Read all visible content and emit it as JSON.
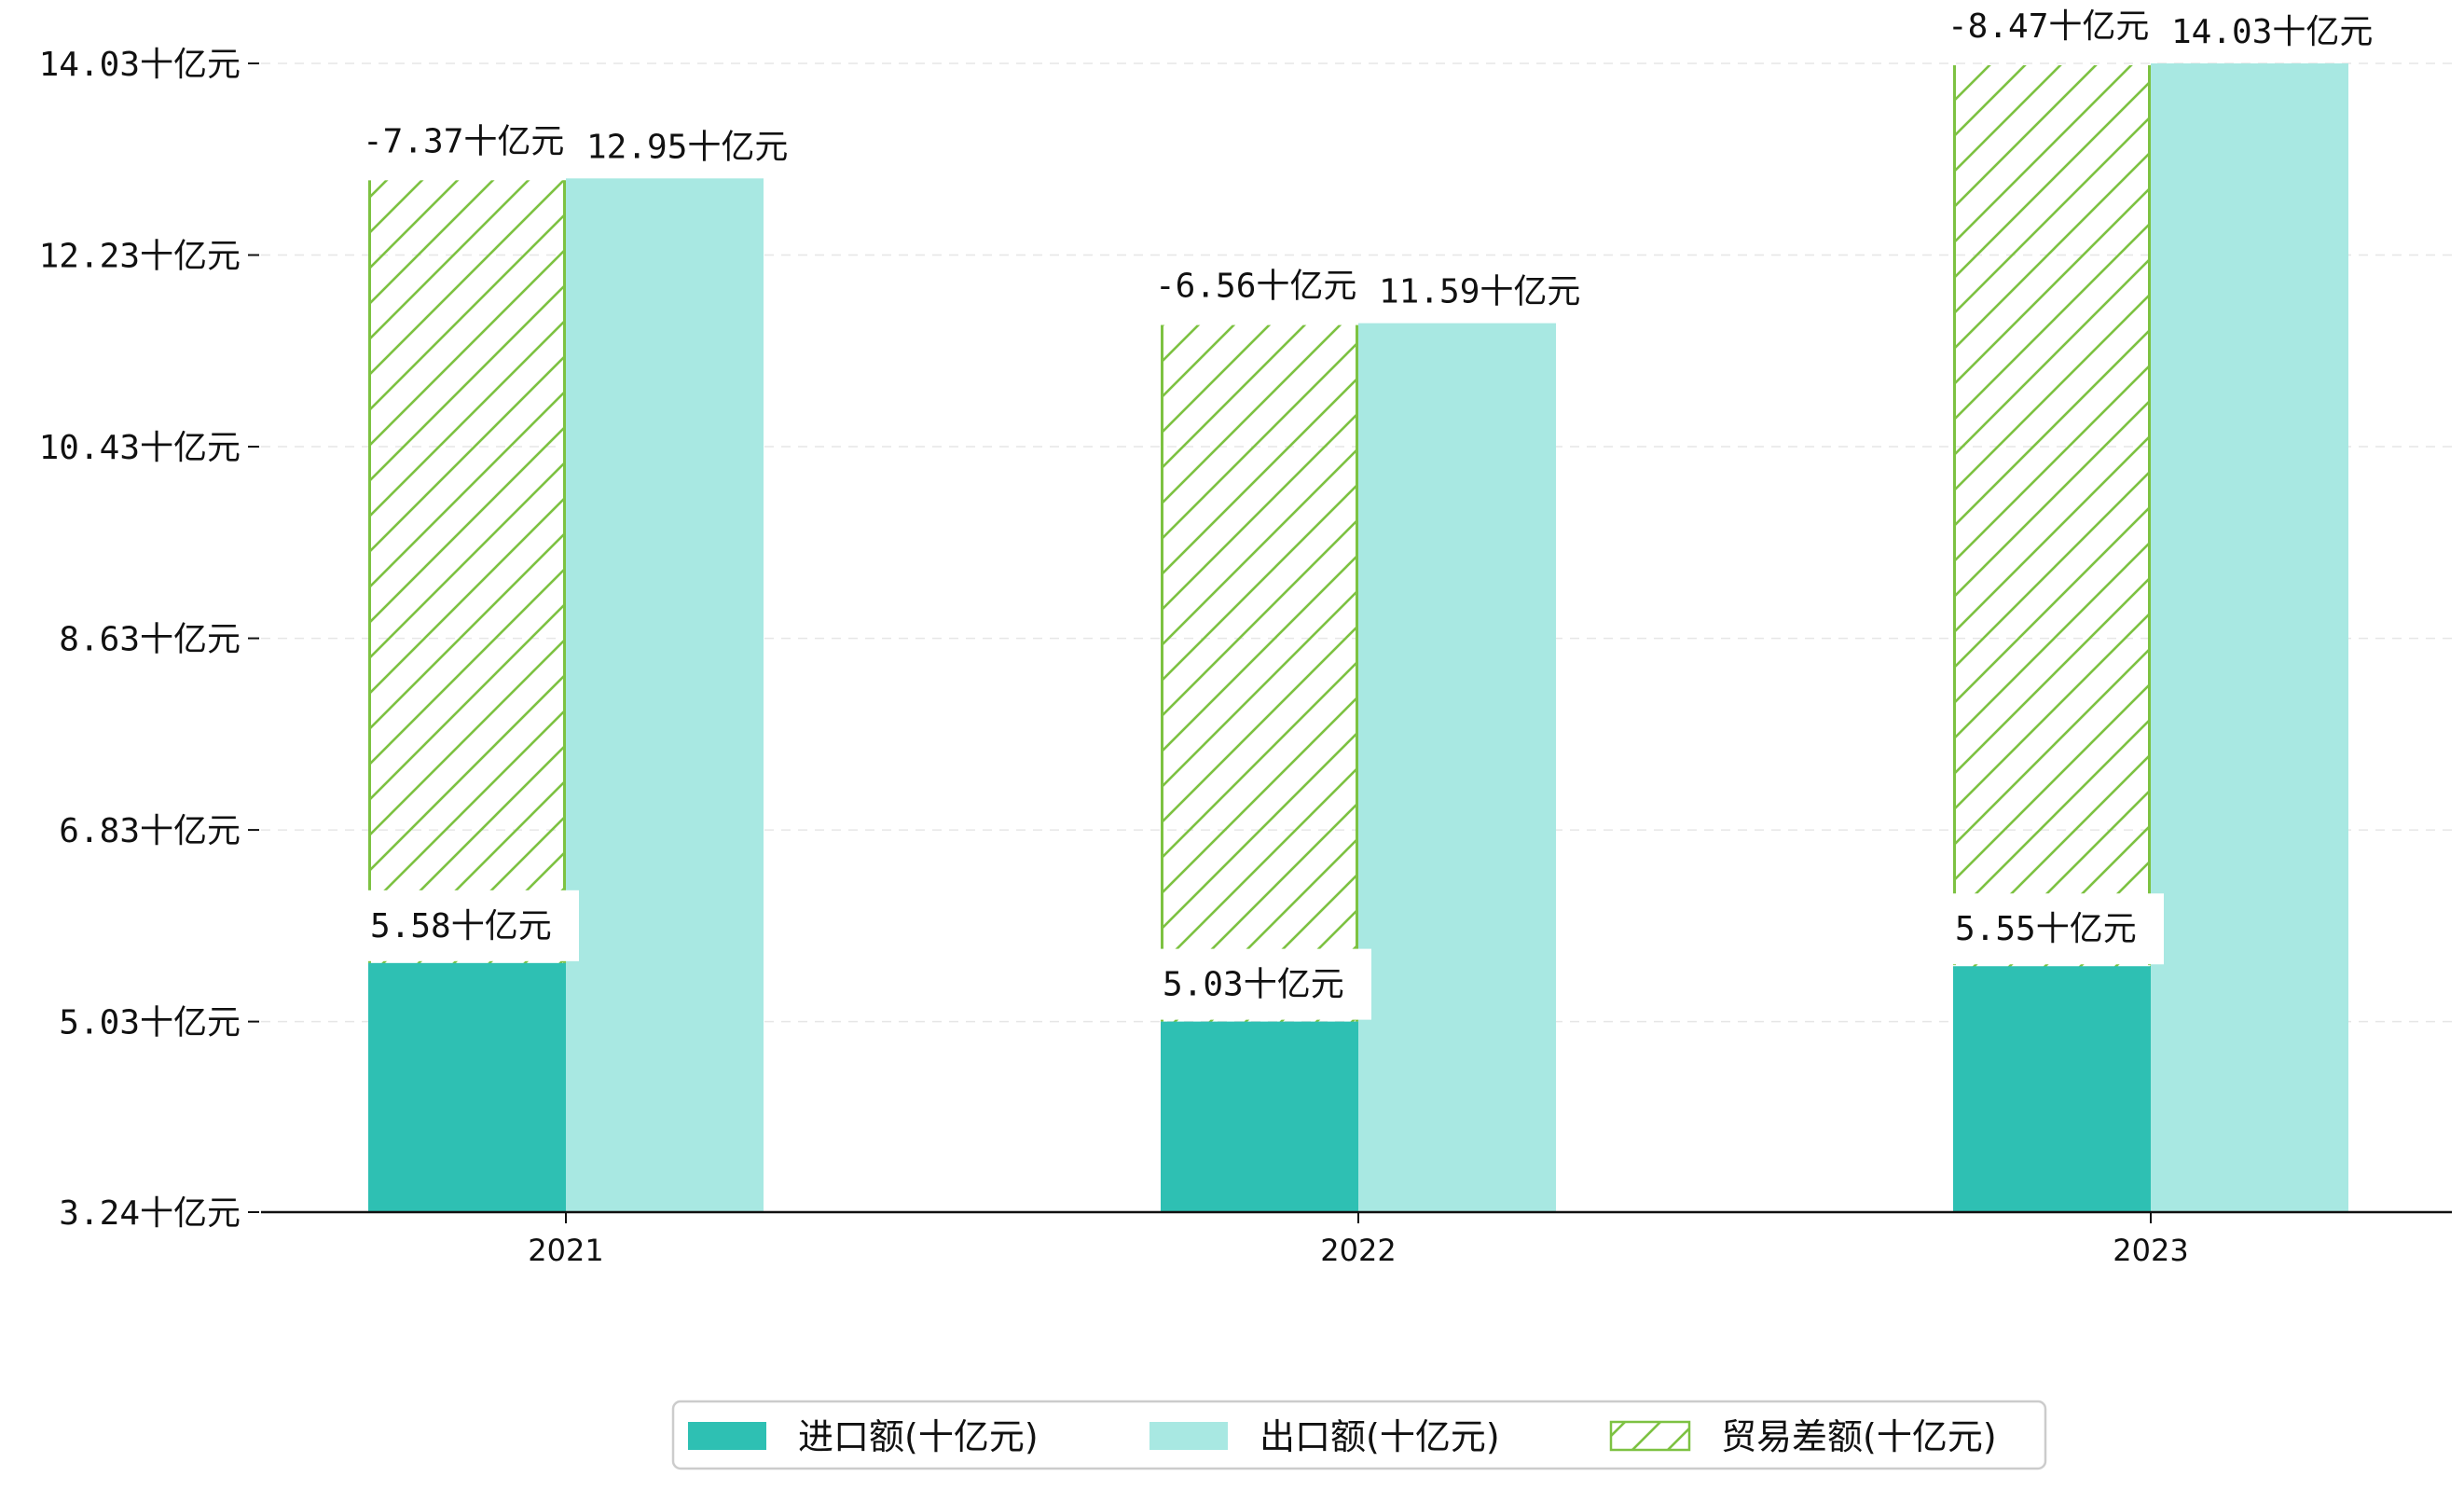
{
  "chart_data": {
    "type": "bar",
    "categories": [
      "2021",
      "2022",
      "2023"
    ],
    "series": [
      {
        "name": "进口额(十亿元)",
        "values": [
          5.58,
          5.03,
          5.55
        ],
        "labels": [
          "5.58十亿元",
          "5.03十亿元",
          "5.55十亿元"
        ],
        "color": "#2EC0B3"
      },
      {
        "name": "出口额(十亿元)",
        "values": [
          12.95,
          11.59,
          14.03
        ],
        "labels": [
          "12.95十亿元",
          "11.59十亿元",
          "14.03十亿元"
        ],
        "color": "#A8E8E2"
      },
      {
        "name": "贸易差额(十亿元)",
        "values": [
          -7.37,
          -6.56,
          -8.47
        ],
        "labels": [
          "-7.37十亿元",
          "-6.56十亿元",
          "-8.47十亿元"
        ],
        "color": "#7DC242",
        "hatched": true
      }
    ],
    "yticks": [
      3.24,
      5.03,
      6.83,
      8.63,
      10.43,
      12.23,
      14.03
    ],
    "ytick_labels": [
      "3.24十亿元",
      "5.03十亿元",
      "6.83十亿元",
      "8.63十亿元",
      "10.43十亿元",
      "12.23十亿元",
      "14.03十亿元"
    ],
    "ylim": [
      3.24,
      14.03
    ],
    "grid": "horizontal-dashed",
    "legend_position": "bottom-center"
  }
}
